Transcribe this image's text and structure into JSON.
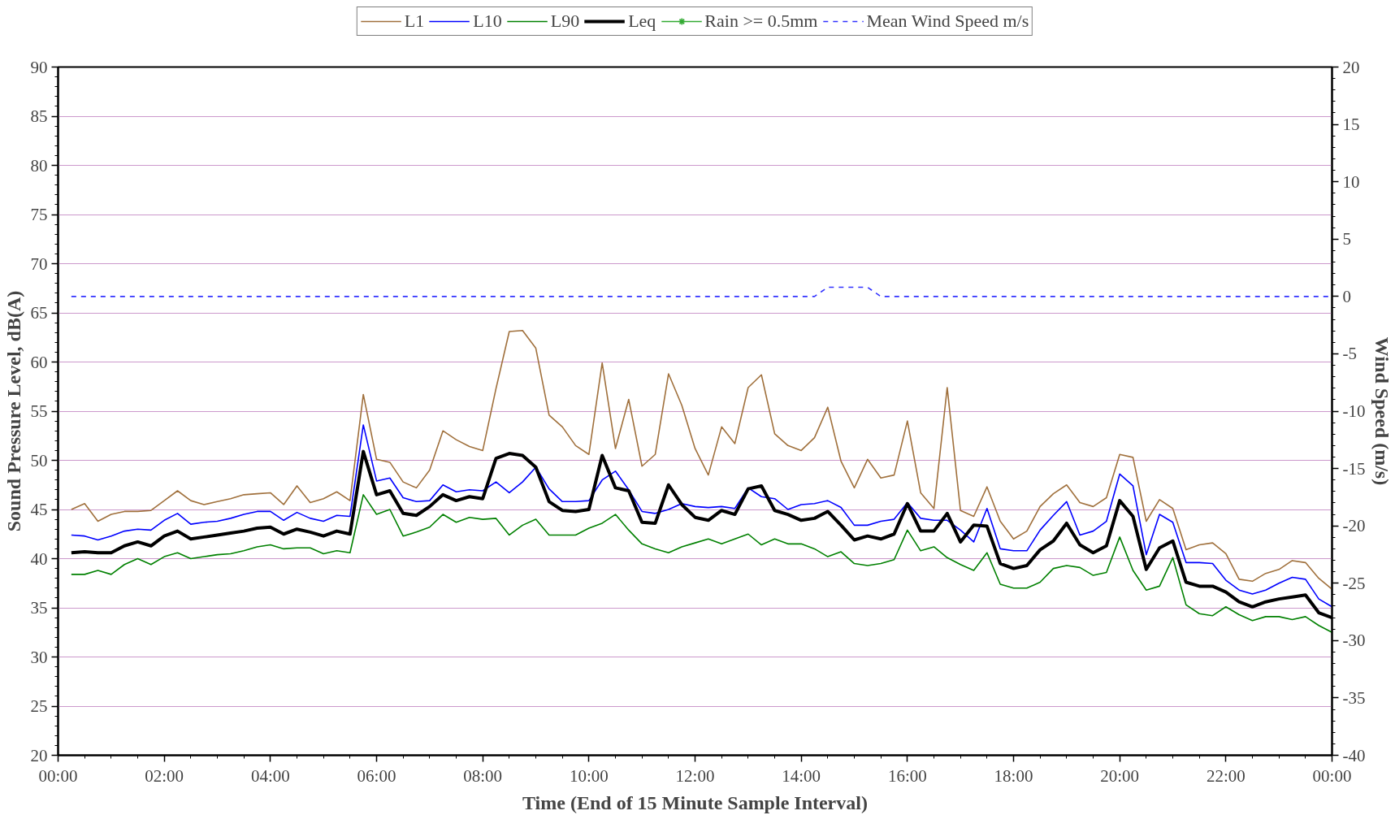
{
  "chart_data": {
    "type": "line",
    "xlabel": "Time (End of 15 Minute Sample Interval)",
    "ylabel": "Sound Pressure Level, dB(A)",
    "y2label": "Wind Speed (m/s)",
    "x": [
      0.25,
      0.5,
      0.75,
      1,
      1.25,
      1.5,
      1.75,
      2,
      2.25,
      2.5,
      2.75,
      3,
      3.25,
      3.5,
      3.75,
      4,
      4.25,
      4.5,
      4.75,
      5,
      5.25,
      5.5,
      5.75,
      6,
      6.25,
      6.5,
      6.75,
      7,
      7.25,
      7.5,
      7.75,
      8,
      8.25,
      8.5,
      8.75,
      9,
      9.25,
      9.5,
      9.75,
      10,
      10.25,
      10.5,
      10.75,
      11,
      11.25,
      11.5,
      11.75,
      12,
      12.25,
      12.5,
      12.75,
      13,
      13.25,
      13.5,
      13.75,
      14,
      14.25,
      14.5,
      14.75,
      15,
      15.25,
      15.5,
      15.75,
      16,
      16.25,
      16.5,
      16.75,
      17,
      17.25,
      17.5,
      17.75,
      18,
      18.25,
      18.5,
      18.75,
      19,
      19.25,
      19.5,
      19.75,
      20,
      20.25,
      20.5,
      20.75,
      21,
      21.25,
      21.5,
      21.75,
      22,
      22.25,
      22.5,
      22.75,
      23,
      23.25,
      23.5,
      23.75,
      24
    ],
    "series": [
      {
        "name": "L1",
        "color": "#a0703c",
        "values": [
          45.0,
          45.6,
          43.8,
          44.5,
          44.8,
          44.8,
          44.9,
          45.9,
          46.9,
          45.9,
          45.5,
          45.8,
          46.1,
          46.5,
          46.6,
          46.7,
          45.5,
          47.4,
          45.7,
          46.1,
          46.8,
          45.9,
          56.7,
          50.1,
          49.8,
          47.8,
          47.2,
          49.0,
          53.0,
          52.1,
          51.4,
          51.0,
          57.3,
          63.1,
          63.2,
          61.4,
          54.6,
          53.4,
          51.5,
          50.6,
          59.9,
          51.2,
          56.2,
          49.4,
          50.6,
          58.8,
          55.6,
          51.2,
          48.5,
          53.4,
          51.7,
          57.4,
          58.7,
          52.7,
          51.5,
          51.0,
          52.3,
          55.4,
          49.9,
          47.2,
          50.1,
          48.2,
          48.5,
          54.0,
          46.7,
          45.1,
          57.4,
          44.9,
          44.3,
          47.3,
          43.8,
          42.0,
          42.8,
          45.3,
          46.6,
          47.5,
          45.7,
          45.3,
          46.2,
          50.6,
          50.3,
          43.8,
          46.0,
          45.1,
          40.9,
          41.4,
          41.6,
          40.5,
          37.9,
          37.7,
          38.5,
          38.9,
          39.8,
          39.6,
          38.0,
          36.9
        ]
      },
      {
        "name": "L10",
        "color": "#0000ff",
        "values": [
          42.4,
          42.3,
          41.9,
          42.3,
          42.8,
          43.0,
          42.9,
          43.9,
          44.6,
          43.5,
          43.7,
          43.8,
          44.1,
          44.5,
          44.8,
          44.8,
          43.9,
          44.7,
          44.1,
          43.8,
          44.4,
          44.3,
          53.6,
          47.9,
          48.2,
          46.2,
          45.8,
          45.9,
          47.5,
          46.8,
          47.0,
          46.9,
          47.8,
          46.7,
          47.8,
          49.3,
          47.1,
          45.8,
          45.8,
          45.9,
          48.0,
          48.9,
          47.0,
          44.8,
          44.6,
          45.0,
          45.6,
          45.3,
          45.2,
          45.3,
          45.1,
          47.2,
          46.3,
          46.1,
          45.0,
          45.5,
          45.6,
          45.9,
          45.2,
          43.4,
          43.4,
          43.8,
          44.0,
          45.7,
          44.1,
          43.9,
          43.9,
          42.9,
          41.7,
          45.1,
          41.0,
          40.8,
          40.8,
          42.9,
          44.4,
          45.8,
          42.4,
          42.8,
          43.8,
          48.6,
          47.4,
          40.4,
          44.5,
          43.7,
          39.6,
          39.6,
          39.5,
          37.8,
          36.8,
          36.4,
          36.8,
          37.5,
          38.1,
          37.9,
          35.9,
          35.1
        ]
      },
      {
        "name": "L90",
        "color": "#008000",
        "values": [
          38.4,
          38.4,
          38.8,
          38.4,
          39.4,
          40.0,
          39.4,
          40.2,
          40.6,
          40.0,
          40.2,
          40.4,
          40.5,
          40.8,
          41.2,
          41.4,
          41.0,
          41.1,
          41.1,
          40.5,
          40.8,
          40.6,
          46.5,
          44.5,
          45.0,
          42.3,
          42.7,
          43.2,
          44.5,
          43.7,
          44.2,
          44.0,
          44.1,
          42.4,
          43.4,
          44.0,
          42.4,
          42.4,
          42.4,
          43.1,
          43.6,
          44.5,
          42.9,
          41.5,
          41.0,
          40.6,
          41.2,
          41.6,
          42.0,
          41.5,
          42.0,
          42.5,
          41.4,
          42.0,
          41.5,
          41.5,
          41.0,
          40.2,
          40.7,
          39.5,
          39.3,
          39.5,
          39.9,
          42.9,
          40.8,
          41.2,
          40.1,
          39.4,
          38.8,
          40.6,
          37.4,
          37.0,
          37.0,
          37.6,
          39.0,
          39.3,
          39.1,
          38.3,
          38.6,
          42.2,
          38.8,
          36.8,
          37.2,
          40.1,
          35.3,
          34.4,
          34.2,
          35.1,
          34.3,
          33.7,
          34.1,
          34.1,
          33.8,
          34.1,
          33.2,
          32.5
        ]
      },
      {
        "name": "Leq",
        "color": "#000000",
        "values": [
          40.6,
          40.7,
          40.6,
          40.6,
          41.3,
          41.7,
          41.3,
          42.3,
          42.8,
          42.0,
          42.2,
          42.4,
          42.6,
          42.8,
          43.1,
          43.2,
          42.5,
          43.0,
          42.7,
          42.3,
          42.8,
          42.5,
          50.9,
          46.5,
          46.9,
          44.6,
          44.4,
          45.3,
          46.5,
          45.9,
          46.3,
          46.1,
          50.2,
          50.7,
          50.5,
          49.3,
          45.8,
          44.9,
          44.8,
          45.0,
          50.5,
          47.2,
          46.9,
          43.7,
          43.6,
          47.5,
          45.5,
          44.2,
          43.9,
          44.9,
          44.5,
          47.1,
          47.4,
          44.9,
          44.5,
          43.9,
          44.1,
          44.8,
          43.4,
          41.9,
          42.3,
          42.0,
          42.5,
          45.6,
          42.8,
          42.8,
          44.6,
          41.7,
          43.4,
          43.3,
          39.5,
          39.0,
          39.3,
          40.9,
          41.8,
          43.6,
          41.4,
          40.6,
          41.3,
          45.9,
          44.3,
          38.9,
          41.1,
          41.8,
          37.6,
          37.2,
          37.2,
          36.6,
          35.6,
          35.1,
          35.6,
          35.9,
          36.1,
          36.3,
          34.5,
          34.0
        ]
      },
      {
        "name": "Rain >= 0.5mm",
        "color": "#33aa33",
        "marker": "star",
        "values": [
          null,
          null,
          null,
          null,
          null,
          null,
          null,
          null,
          null,
          null,
          null,
          null,
          null,
          null,
          null,
          null,
          null,
          null,
          null,
          null,
          null,
          null,
          null,
          null,
          null,
          null,
          null,
          null,
          null,
          null,
          null,
          null,
          null,
          null,
          null,
          null,
          null,
          null,
          null,
          null,
          null,
          null,
          null,
          null,
          null,
          null,
          null,
          null,
          null,
          null,
          null,
          null,
          null,
          null,
          null,
          null,
          null,
          null,
          null,
          null,
          null,
          null,
          null,
          null,
          null,
          null,
          null,
          null,
          null,
          null,
          null,
          null,
          null,
          null,
          null,
          null,
          null,
          null,
          null,
          null,
          null,
          null,
          null,
          null,
          null,
          null,
          null,
          null,
          null,
          null,
          null,
          null,
          null,
          null,
          null,
          null
        ]
      },
      {
        "name": "Mean Wind Speed m/s",
        "color": "#3333ff",
        "axis": "y2",
        "line_style": "dashed",
        "values": [
          0,
          0,
          0,
          0,
          0,
          0,
          0,
          0,
          0,
          0,
          0,
          0,
          0,
          0,
          0,
          0,
          0,
          0,
          0,
          0,
          0,
          0,
          0,
          0,
          0,
          0,
          0,
          0,
          0,
          0,
          0,
          0,
          0,
          0,
          0,
          0,
          0,
          0,
          0,
          0,
          0,
          0,
          0,
          0,
          0,
          0,
          0,
          0,
          0,
          0,
          0,
          0,
          0,
          0,
          0,
          0,
          0,
          0.8,
          0.8,
          0.8,
          0.8,
          0,
          0,
          0,
          0,
          0,
          0,
          0,
          0,
          0,
          0,
          0,
          0,
          0,
          0,
          0,
          0,
          0,
          0,
          0,
          0,
          0,
          0,
          0,
          0,
          0,
          0,
          0,
          0,
          0,
          0,
          0,
          0,
          0,
          0,
          0
        ]
      }
    ],
    "xlim": [
      0,
      24
    ],
    "xticks": [
      {
        "value": 0,
        "label": "00:00"
      },
      {
        "value": 2,
        "label": "02:00"
      },
      {
        "value": 4,
        "label": "04:00"
      },
      {
        "value": 6,
        "label": "06:00"
      },
      {
        "value": 8,
        "label": "08:00"
      },
      {
        "value": 10,
        "label": "10:00"
      },
      {
        "value": 12,
        "label": "12:00"
      },
      {
        "value": 14,
        "label": "14:00"
      },
      {
        "value": 16,
        "label": "16:00"
      },
      {
        "value": 18,
        "label": "18:00"
      },
      {
        "value": 20,
        "label": "20:00"
      },
      {
        "value": 22,
        "label": "22:00"
      },
      {
        "value": 24,
        "label": "00:00"
      }
    ],
    "ylim": [
      20,
      90
    ],
    "yticks": [
      20,
      25,
      30,
      35,
      40,
      45,
      50,
      55,
      60,
      65,
      70,
      75,
      80,
      85,
      90
    ],
    "y2lim": [
      -40,
      20
    ],
    "y2ticks": [
      -40,
      -35,
      -30,
      -25,
      -20,
      -15,
      -10,
      -5,
      0,
      5,
      10,
      15,
      20
    ],
    "grid": "y",
    "legend": "top",
    "marker": "none",
    "line_style": "solid"
  }
}
